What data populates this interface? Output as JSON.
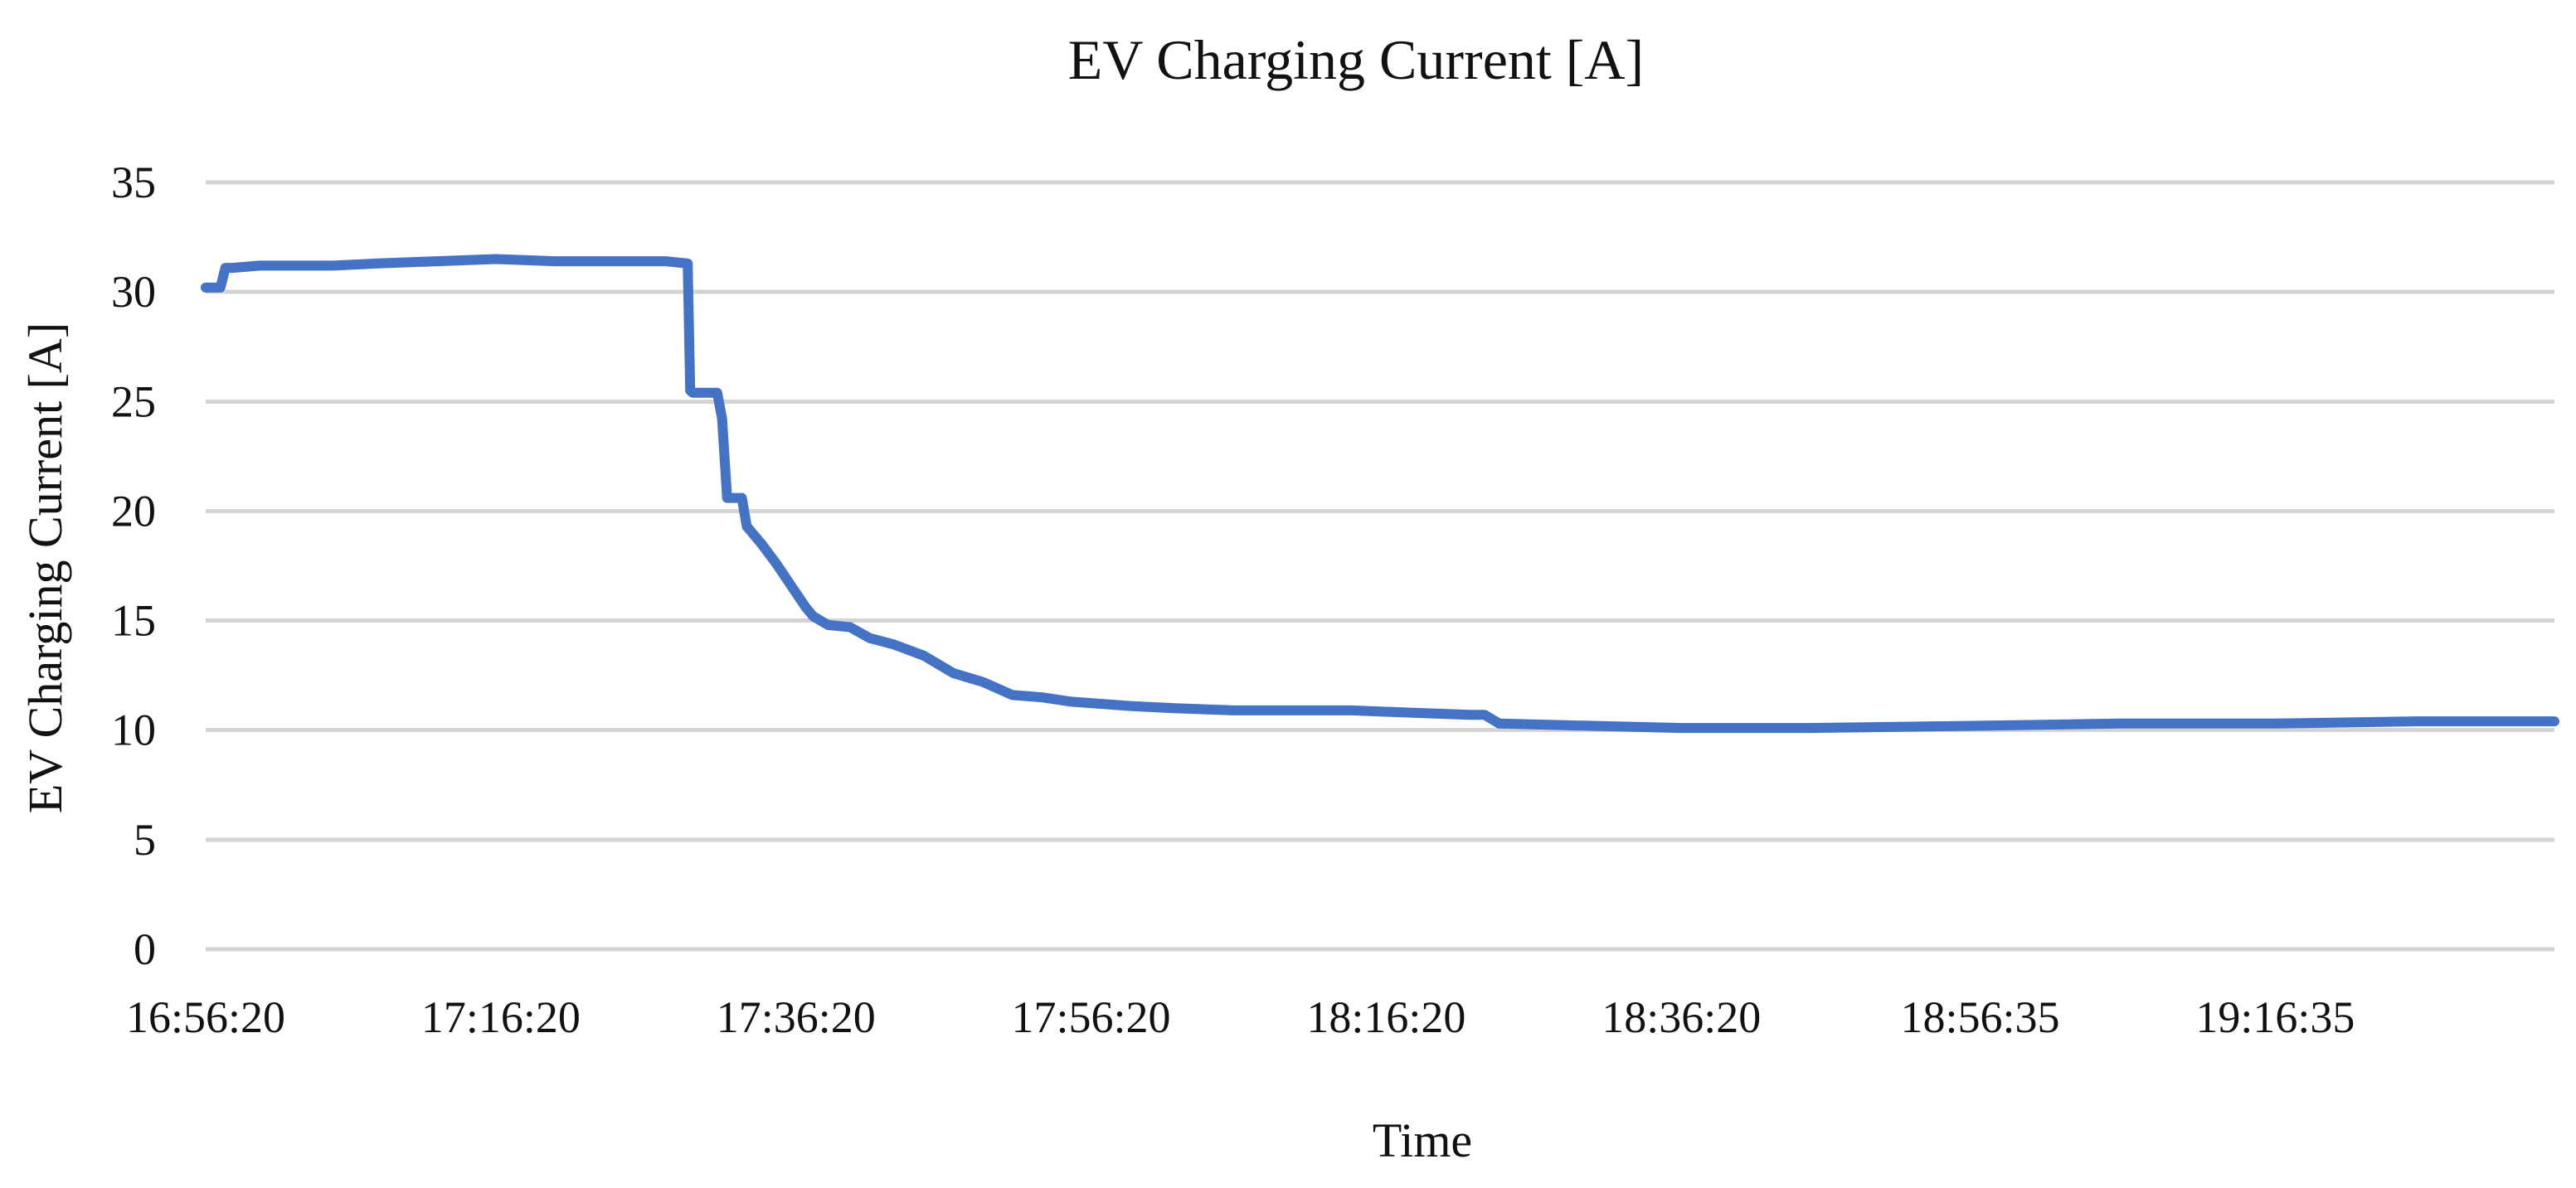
{
  "chart_data": {
    "type": "line",
    "title": "EV Charging Current [A]",
    "xlabel": "Time",
    "ylabel": "EV Charging Current [A]",
    "ylim": [
      0,
      35
    ],
    "y_ticks": [
      0,
      5,
      10,
      15,
      20,
      25,
      30,
      35
    ],
    "x_axis": "time",
    "xlim": [
      "16:56:20",
      "19:35:30"
    ],
    "x_tick_labels": [
      "16:56:20",
      "17:16:20",
      "17:36:20",
      "17:56:20",
      "18:16:20",
      "18:36:20",
      "18:56:35",
      "19:16:35"
    ],
    "grid": true,
    "legend": "none",
    "colors": {
      "series": "#4472C4",
      "grid": "#D4D4D4"
    },
    "series": [
      {
        "x": [
          "16:56:20",
          "16:57:20",
          "16:57:40",
          "16:58:10",
          "17:00:00",
          "17:05:00",
          "17:08:00",
          "17:12:00",
          "17:16:00",
          "17:20:00",
          "17:24:00",
          "17:27:30",
          "17:29:00",
          "17:29:10",
          "17:29:20",
          "17:29:30",
          "17:31:00",
          "17:31:20",
          "17:31:40",
          "17:32:00",
          "17:32:40",
          "17:33:00",
          "17:34:00",
          "17:35:00",
          "17:36:00",
          "17:37:00",
          "17:37:30",
          "17:38:30",
          "17:40:00",
          "17:41:20",
          "17:43:00",
          "17:45:00",
          "17:47:00",
          "17:49:00",
          "17:51:00",
          "17:53:00",
          "17:55:00",
          "17:59:00",
          "18:02:00",
          "18:06:00",
          "18:10:00",
          "18:14:00",
          "18:18:00",
          "18:22:00",
          "18:23:00",
          "18:24:00",
          "18:30:00",
          "18:36:20",
          "18:45:00",
          "18:56:35",
          "19:06:00",
          "19:16:35",
          "19:26:00",
          "19:35:30"
        ],
        "values": [
          30.2,
          30.2,
          31.1,
          31.1,
          31.2,
          31.2,
          31.3,
          31.4,
          31.5,
          31.4,
          31.4,
          31.4,
          31.3,
          25.5,
          25.4,
          25.4,
          25.4,
          24.2,
          20.6,
          20.6,
          20.6,
          19.3,
          18.5,
          17.6,
          16.6,
          15.6,
          15.2,
          14.8,
          14.7,
          14.2,
          13.9,
          13.4,
          12.6,
          12.2,
          11.6,
          11.5,
          11.3,
          11.1,
          11.0,
          10.9,
          10.9,
          10.9,
          10.8,
          10.7,
          10.7,
          10.3,
          10.2,
          10.1,
          10.1,
          10.2,
          10.3,
          10.3,
          10.4,
          10.4
        ]
      }
    ]
  }
}
